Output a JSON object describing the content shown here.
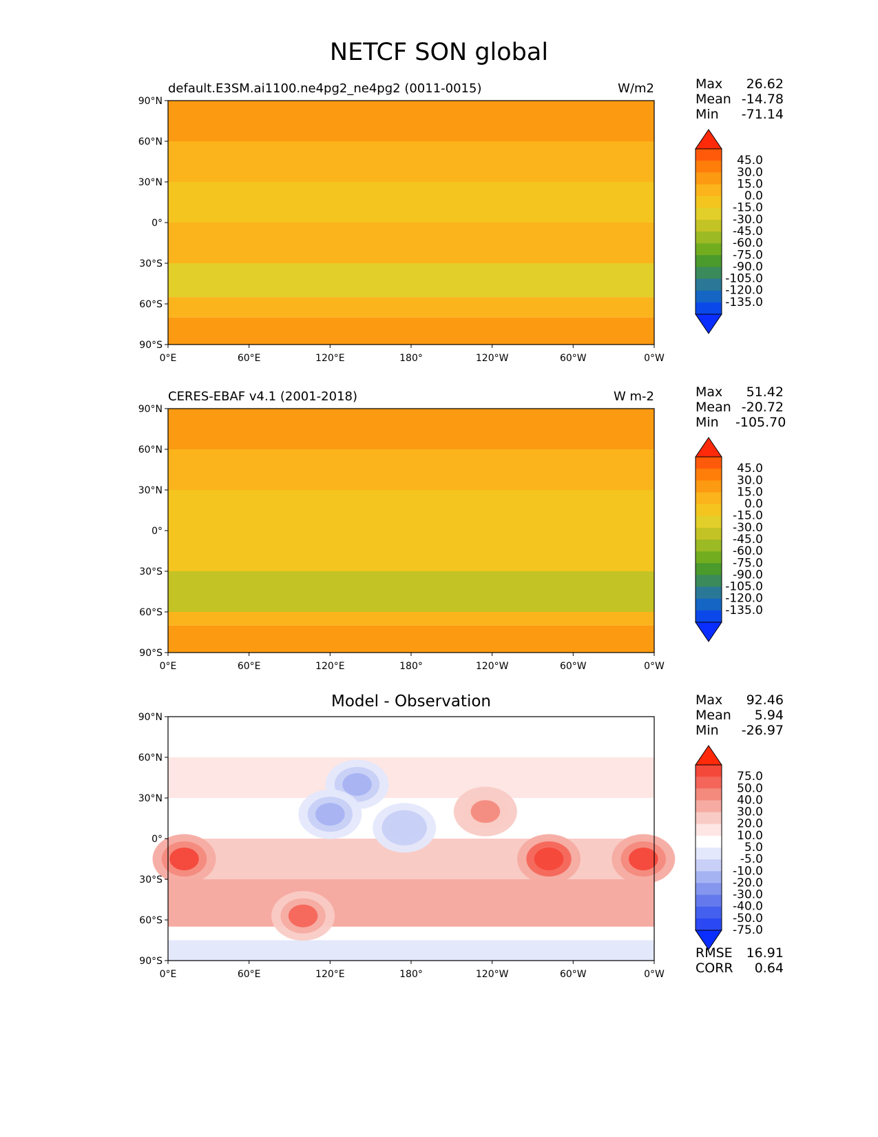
{
  "figure": {
    "title": "NETCF SON global"
  },
  "panels": [
    {
      "id": "model",
      "left_title": "default.E3SM.ai1100.ne4pg2_ne4pg2 (0011-0015)",
      "right_title": "W/m2",
      "stats": [
        {
          "label": "Max",
          "value": "26.62"
        },
        {
          "label": "Mean",
          "value": "-14.78"
        },
        {
          "label": "Min",
          "value": "-71.14"
        }
      ],
      "colorbar": {
        "levels": [
          "45.0",
          "30.0",
          "15.0",
          "0.0",
          "-15.0",
          "-30.0",
          "-45.0",
          "-60.0",
          "-75.0",
          "-90.0",
          "-105.0",
          "-120.0",
          "-135.0"
        ],
        "colors": [
          "#ff2a0a",
          "#ff5a0a",
          "#ff7e0a",
          "#fc9a12",
          "#fbb41b",
          "#f4c51f",
          "#e2cf2a",
          "#c4c325",
          "#9cba24",
          "#72ad20",
          "#4a9a2c",
          "#3a8a5c",
          "#2a7896",
          "#1566c4",
          "#0a48ea",
          "#0a2eff"
        ]
      }
    },
    {
      "id": "obs",
      "left_title": "CERES-EBAF v4.1 (2001-2018)",
      "right_title": "W m-2",
      "stats": [
        {
          "label": "Max",
          "value": "51.42"
        },
        {
          "label": "Mean",
          "value": "-20.72"
        },
        {
          "label": "Min",
          "value": "-105.70"
        }
      ],
      "colorbar": {
        "levels": [
          "45.0",
          "30.0",
          "15.0",
          "0.0",
          "-15.0",
          "-30.0",
          "-45.0",
          "-60.0",
          "-75.0",
          "-90.0",
          "-105.0",
          "-120.0",
          "-135.0"
        ],
        "colors": [
          "#ff2a0a",
          "#ff5a0a",
          "#ff7e0a",
          "#fc9a12",
          "#fbb41b",
          "#f4c51f",
          "#e2cf2a",
          "#c4c325",
          "#9cba24",
          "#72ad20",
          "#4a9a2c",
          "#3a8a5c",
          "#2a7896",
          "#1566c4",
          "#0a48ea",
          "#0a2eff"
        ]
      }
    },
    {
      "id": "diff",
      "center_title": "Model - Observation",
      "stats": [
        {
          "label": "Max",
          "value": "92.46"
        },
        {
          "label": "Mean",
          "value": "5.94"
        },
        {
          "label": "Min",
          "value": "-26.97"
        }
      ],
      "extra_stats": [
        {
          "label": "RMSE",
          "value": "16.91"
        },
        {
          "label": "CORR",
          "value": "0.64"
        }
      ],
      "colorbar": {
        "levels": [
          "75.0",
          "50.0",
          "40.0",
          "30.0",
          "20.0",
          "10.0",
          "5.0",
          "-5.0",
          "-10.0",
          "-20.0",
          "-30.0",
          "-40.0",
          "-50.0",
          "-75.0"
        ],
        "colors": [
          "#ff2a0a",
          "#f4483a",
          "#f4665a",
          "#f48a7e",
          "#f6aba2",
          "#f9cbc5",
          "#fde6e3",
          "#ffffff",
          "#e4e8fb",
          "#c8d0f7",
          "#a6b3f2",
          "#8596ee",
          "#6479ec",
          "#4460ee",
          "#2a48f3",
          "#0a2eff"
        ]
      }
    }
  ],
  "chart_data": [
    {
      "type": "heatmap",
      "panel": "model",
      "projection": "plate-carree",
      "x_ticks": [
        "0°E",
        "60°E",
        "120°E",
        "180°",
        "120°W",
        "60°W",
        "0°W"
      ],
      "y_ticks": [
        "90°N",
        "60°N",
        "30°N",
        "0°",
        "30°S",
        "60°S",
        "90°S"
      ],
      "xlim": [
        0,
        360
      ],
      "ylim": [
        -90,
        90
      ],
      "zones": [
        {
          "lat": [
            60,
            90
          ],
          "value": 5
        },
        {
          "lat": [
            30,
            60
          ],
          "value": -15
        },
        {
          "lat": [
            0,
            30
          ],
          "value": -25
        },
        {
          "lat": [
            -30,
            0
          ],
          "value": -15
        },
        {
          "lat": [
            -55,
            -30
          ],
          "value": -45
        },
        {
          "lat": [
            -70,
            -55
          ],
          "value": -15
        },
        {
          "lat": [
            -90,
            -70
          ],
          "value": 5
        }
      ]
    },
    {
      "type": "heatmap",
      "panel": "obs",
      "projection": "plate-carree",
      "x_ticks": [
        "0°E",
        "60°E",
        "120°E",
        "180°",
        "120°W",
        "60°W",
        "0°W"
      ],
      "y_ticks": [
        "90°N",
        "60°N",
        "30°N",
        "0°",
        "30°S",
        "60°S",
        "90°S"
      ],
      "xlim": [
        0,
        360
      ],
      "ylim": [
        -90,
        90
      ],
      "zones": [
        {
          "lat": [
            60,
            90
          ],
          "value": 10
        },
        {
          "lat": [
            30,
            60
          ],
          "value": -10
        },
        {
          "lat": [
            0,
            30
          ],
          "value": -20
        },
        {
          "lat": [
            -30,
            0
          ],
          "value": -25
        },
        {
          "lat": [
            -60,
            -30
          ],
          "value": -60
        },
        {
          "lat": [
            -70,
            -60
          ],
          "value": -15
        },
        {
          "lat": [
            -90,
            -70
          ],
          "value": 10
        }
      ]
    },
    {
      "type": "heatmap",
      "panel": "diff",
      "projection": "plate-carree",
      "x_ticks": [
        "0°E",
        "60°E",
        "120°E",
        "180°",
        "120°W",
        "60°W",
        "0°W"
      ],
      "y_ticks": [
        "90°N",
        "60°N",
        "30°N",
        "0°",
        "30°S",
        "60°S",
        "90°S"
      ],
      "xlim": [
        0,
        360
      ],
      "ylim": [
        -90,
        90
      ],
      "zones": [
        {
          "lat": [
            60,
            90
          ],
          "value": 0
        },
        {
          "lat": [
            30,
            60
          ],
          "value": 5
        },
        {
          "lat": [
            0,
            30
          ],
          "value": -5
        },
        {
          "lat": [
            -30,
            0
          ],
          "value": 10
        },
        {
          "lat": [
            -65,
            -30
          ],
          "value": 20
        },
        {
          "lat": [
            -75,
            -65
          ],
          "value": 0
        },
        {
          "lat": [
            -90,
            -75
          ],
          "value": -8
        }
      ],
      "blobs": [
        {
          "lon": 12,
          "lat": -15,
          "value": 60
        },
        {
          "lon": 282,
          "lat": -15,
          "value": 70
        },
        {
          "lon": 352,
          "lat": -15,
          "value": 60
        },
        {
          "lon": 100,
          "lat": -57,
          "value": 45
        },
        {
          "lon": 140,
          "lat": 40,
          "value": -25
        },
        {
          "lon": 120,
          "lat": 18,
          "value": -22
        },
        {
          "lon": 175,
          "lat": 8,
          "value": -20
        },
        {
          "lon": 235,
          "lat": 20,
          "value": 30
        }
      ]
    }
  ]
}
